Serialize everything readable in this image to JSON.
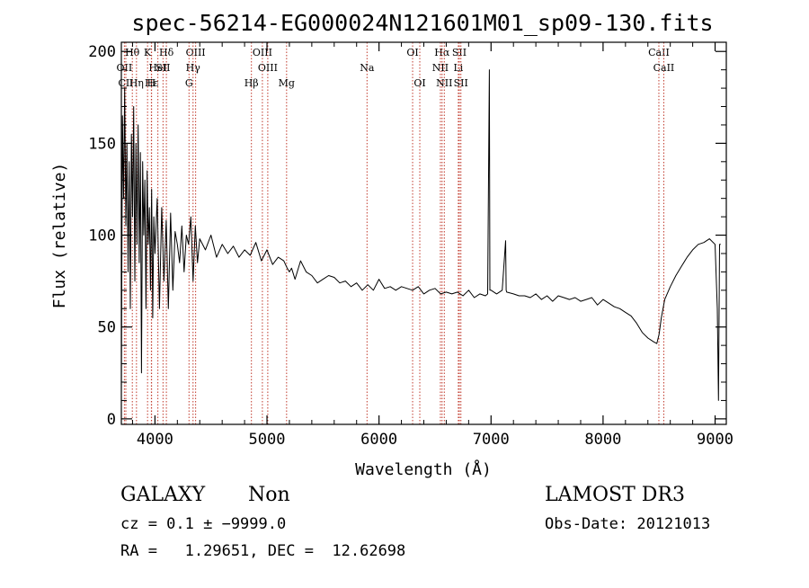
{
  "colors": {
    "axis": "#000000",
    "line_marker": "#c0392b",
    "spectrum": "#000000"
  },
  "chart_data": {
    "type": "line",
    "title": "spec-56214-EG000024N121601M01_sp09-130.fits",
    "xlabel": "Wavelength (Å)",
    "ylabel": "Flux (relative)",
    "xlim": [
      3700,
      9100
    ],
    "ylim": [
      -3,
      205
    ],
    "xticks": [
      4000,
      5000,
      6000,
      7000,
      8000,
      9000
    ],
    "yticks": [
      0,
      50,
      100,
      150,
      200
    ],
    "xtick_labels": [
      "4000",
      "5000",
      "6000",
      "7000",
      "8000",
      "9000"
    ],
    "ytick_labels": [
      "0",
      "50",
      "100",
      "150",
      "200"
    ],
    "spectrum": {
      "x": [
        3700,
        3710,
        3720,
        3730,
        3740,
        3750,
        3760,
        3770,
        3780,
        3790,
        3800,
        3810,
        3820,
        3830,
        3840,
        3850,
        3860,
        3870,
        3880,
        3890,
        3900,
        3910,
        3920,
        3930,
        3940,
        3950,
        3960,
        3970,
        3980,
        3990,
        4000,
        4020,
        4040,
        4060,
        4080,
        4100,
        4120,
        4140,
        4160,
        4180,
        4200,
        4220,
        4240,
        4260,
        4280,
        4300,
        4320,
        4340,
        4360,
        4380,
        4400,
        4450,
        4500,
        4550,
        4600,
        4650,
        4700,
        4750,
        4800,
        4850,
        4900,
        4950,
        5000,
        5050,
        5100,
        5150,
        5180,
        5200,
        5220,
        5250,
        5300,
        5350,
        5400,
        5450,
        5500,
        5550,
        5600,
        5650,
        5700,
        5750,
        5800,
        5850,
        5900,
        5950,
        6000,
        6050,
        6100,
        6150,
        6200,
        6250,
        6300,
        6350,
        6400,
        6450,
        6500,
        6550,
        6600,
        6650,
        6700,
        6750,
        6800,
        6850,
        6900,
        6950,
        6970,
        6985,
        6990,
        7000,
        7050,
        7100,
        7130,
        7135,
        7140,
        7200,
        7250,
        7300,
        7350,
        7400,
        7450,
        7500,
        7550,
        7600,
        7650,
        7700,
        7750,
        7800,
        7850,
        7900,
        7950,
        8000,
        8050,
        8100,
        8150,
        8200,
        8250,
        8300,
        8350,
        8400,
        8450,
        8480,
        8500,
        8520,
        8550,
        8600,
        8650,
        8700,
        8750,
        8800,
        8850,
        8900,
        8950,
        9000,
        9020,
        9030,
        9040,
        9050
      ],
      "y": [
        15,
        165,
        120,
        180,
        105,
        150,
        80,
        140,
        60,
        155,
        110,
        170,
        75,
        150,
        95,
        160,
        85,
        145,
        25,
        140,
        100,
        130,
        60,
        135,
        95,
        115,
        70,
        125,
        55,
        110,
        90,
        120,
        60,
        115,
        75,
        108,
        60,
        112,
        70,
        102,
        95,
        85,
        105,
        80,
        100,
        95,
        110,
        75,
        105,
        85,
        98,
        92,
        100,
        88,
        95,
        90,
        94,
        88,
        92,
        89,
        96,
        86,
        92,
        84,
        88,
        86,
        82,
        80,
        82,
        76,
        86,
        80,
        78,
        74,
        76,
        78,
        77,
        74,
        75,
        72,
        74,
        70,
        73,
        70,
        76,
        71,
        72,
        70,
        72,
        71,
        70,
        72,
        68,
        70,
        71,
        68,
        69,
        68,
        69,
        67,
        70,
        66,
        68,
        67,
        68,
        190,
        70,
        70,
        68,
        70,
        97,
        70,
        69,
        68,
        67,
        67,
        66,
        68,
        65,
        67,
        64,
        67,
        66,
        65,
        66,
        64,
        65,
        66,
        62,
        65,
        63,
        61,
        60,
        58,
        56,
        52,
        47,
        44,
        42,
        41,
        46,
        55,
        65,
        72,
        78,
        83,
        88,
        92,
        95,
        96,
        98,
        95,
        60,
        10,
        95,
        95
      ]
    },
    "spectral_lines": [
      {
        "name": "OII",
        "x": 3727,
        "row": 1
      },
      {
        "name": "CII",
        "x": 3740,
        "row": 2
      },
      {
        "name": "Hθ",
        "x": 3798,
        "row": 0
      },
      {
        "name": "Hε",
        "x": 3970,
        "row": 2
      },
      {
        "name": "Hη",
        "x": 3835,
        "row": 2
      },
      {
        "name": "HeI",
        "x": 4026,
        "row": 1
      },
      {
        "name": "K",
        "x": 3934,
        "row": 0
      },
      {
        "name": "H",
        "x": 3968,
        "row": 2
      },
      {
        "name": "Hδ",
        "x": 4102,
        "row": 0
      },
      {
        "name": "SII",
        "x": 4072,
        "row": 1
      },
      {
        "name": "OIII",
        "x": 4363,
        "row": 0
      },
      {
        "name": "Hγ",
        "x": 4340,
        "row": 1
      },
      {
        "name": "G",
        "x": 4304,
        "row": 2
      },
      {
        "name": "Hβ",
        "x": 4861,
        "row": 2
      },
      {
        "name": "OIII",
        "x": 4959,
        "row": 0
      },
      {
        "name": "OIII",
        "x": 5007,
        "row": 1
      },
      {
        "name": "Mg",
        "x": 5175,
        "row": 2
      },
      {
        "name": "Na",
        "x": 5893,
        "row": 1
      },
      {
        "name": "OI",
        "x": 6300,
        "row": 0
      },
      {
        "name": "OI",
        "x": 6364,
        "row": 2
      },
      {
        "name": "Hα",
        "x": 6563,
        "row": 0
      },
      {
        "name": "NII",
        "x": 6548,
        "row": 1
      },
      {
        "name": "NII",
        "x": 6583,
        "row": 2
      },
      {
        "name": "SII",
        "x": 6717,
        "row": 0
      },
      {
        "name": "Li",
        "x": 6708,
        "row": 1
      },
      {
        "name": "SII",
        "x": 6731,
        "row": 2
      },
      {
        "name": "CaII",
        "x": 8498,
        "row": 0
      },
      {
        "name": "CaII",
        "x": 8542,
        "row": 1
      }
    ]
  },
  "info": {
    "classification": "GALAXY",
    "subclass": "Non",
    "survey": "LAMOST DR3",
    "cz_line": "cz = 0.1 ± −9999.0",
    "obs_date": "Obs-Date: 20121013",
    "radec_line": "RA =   1.29651, DEC =  12.62698"
  }
}
